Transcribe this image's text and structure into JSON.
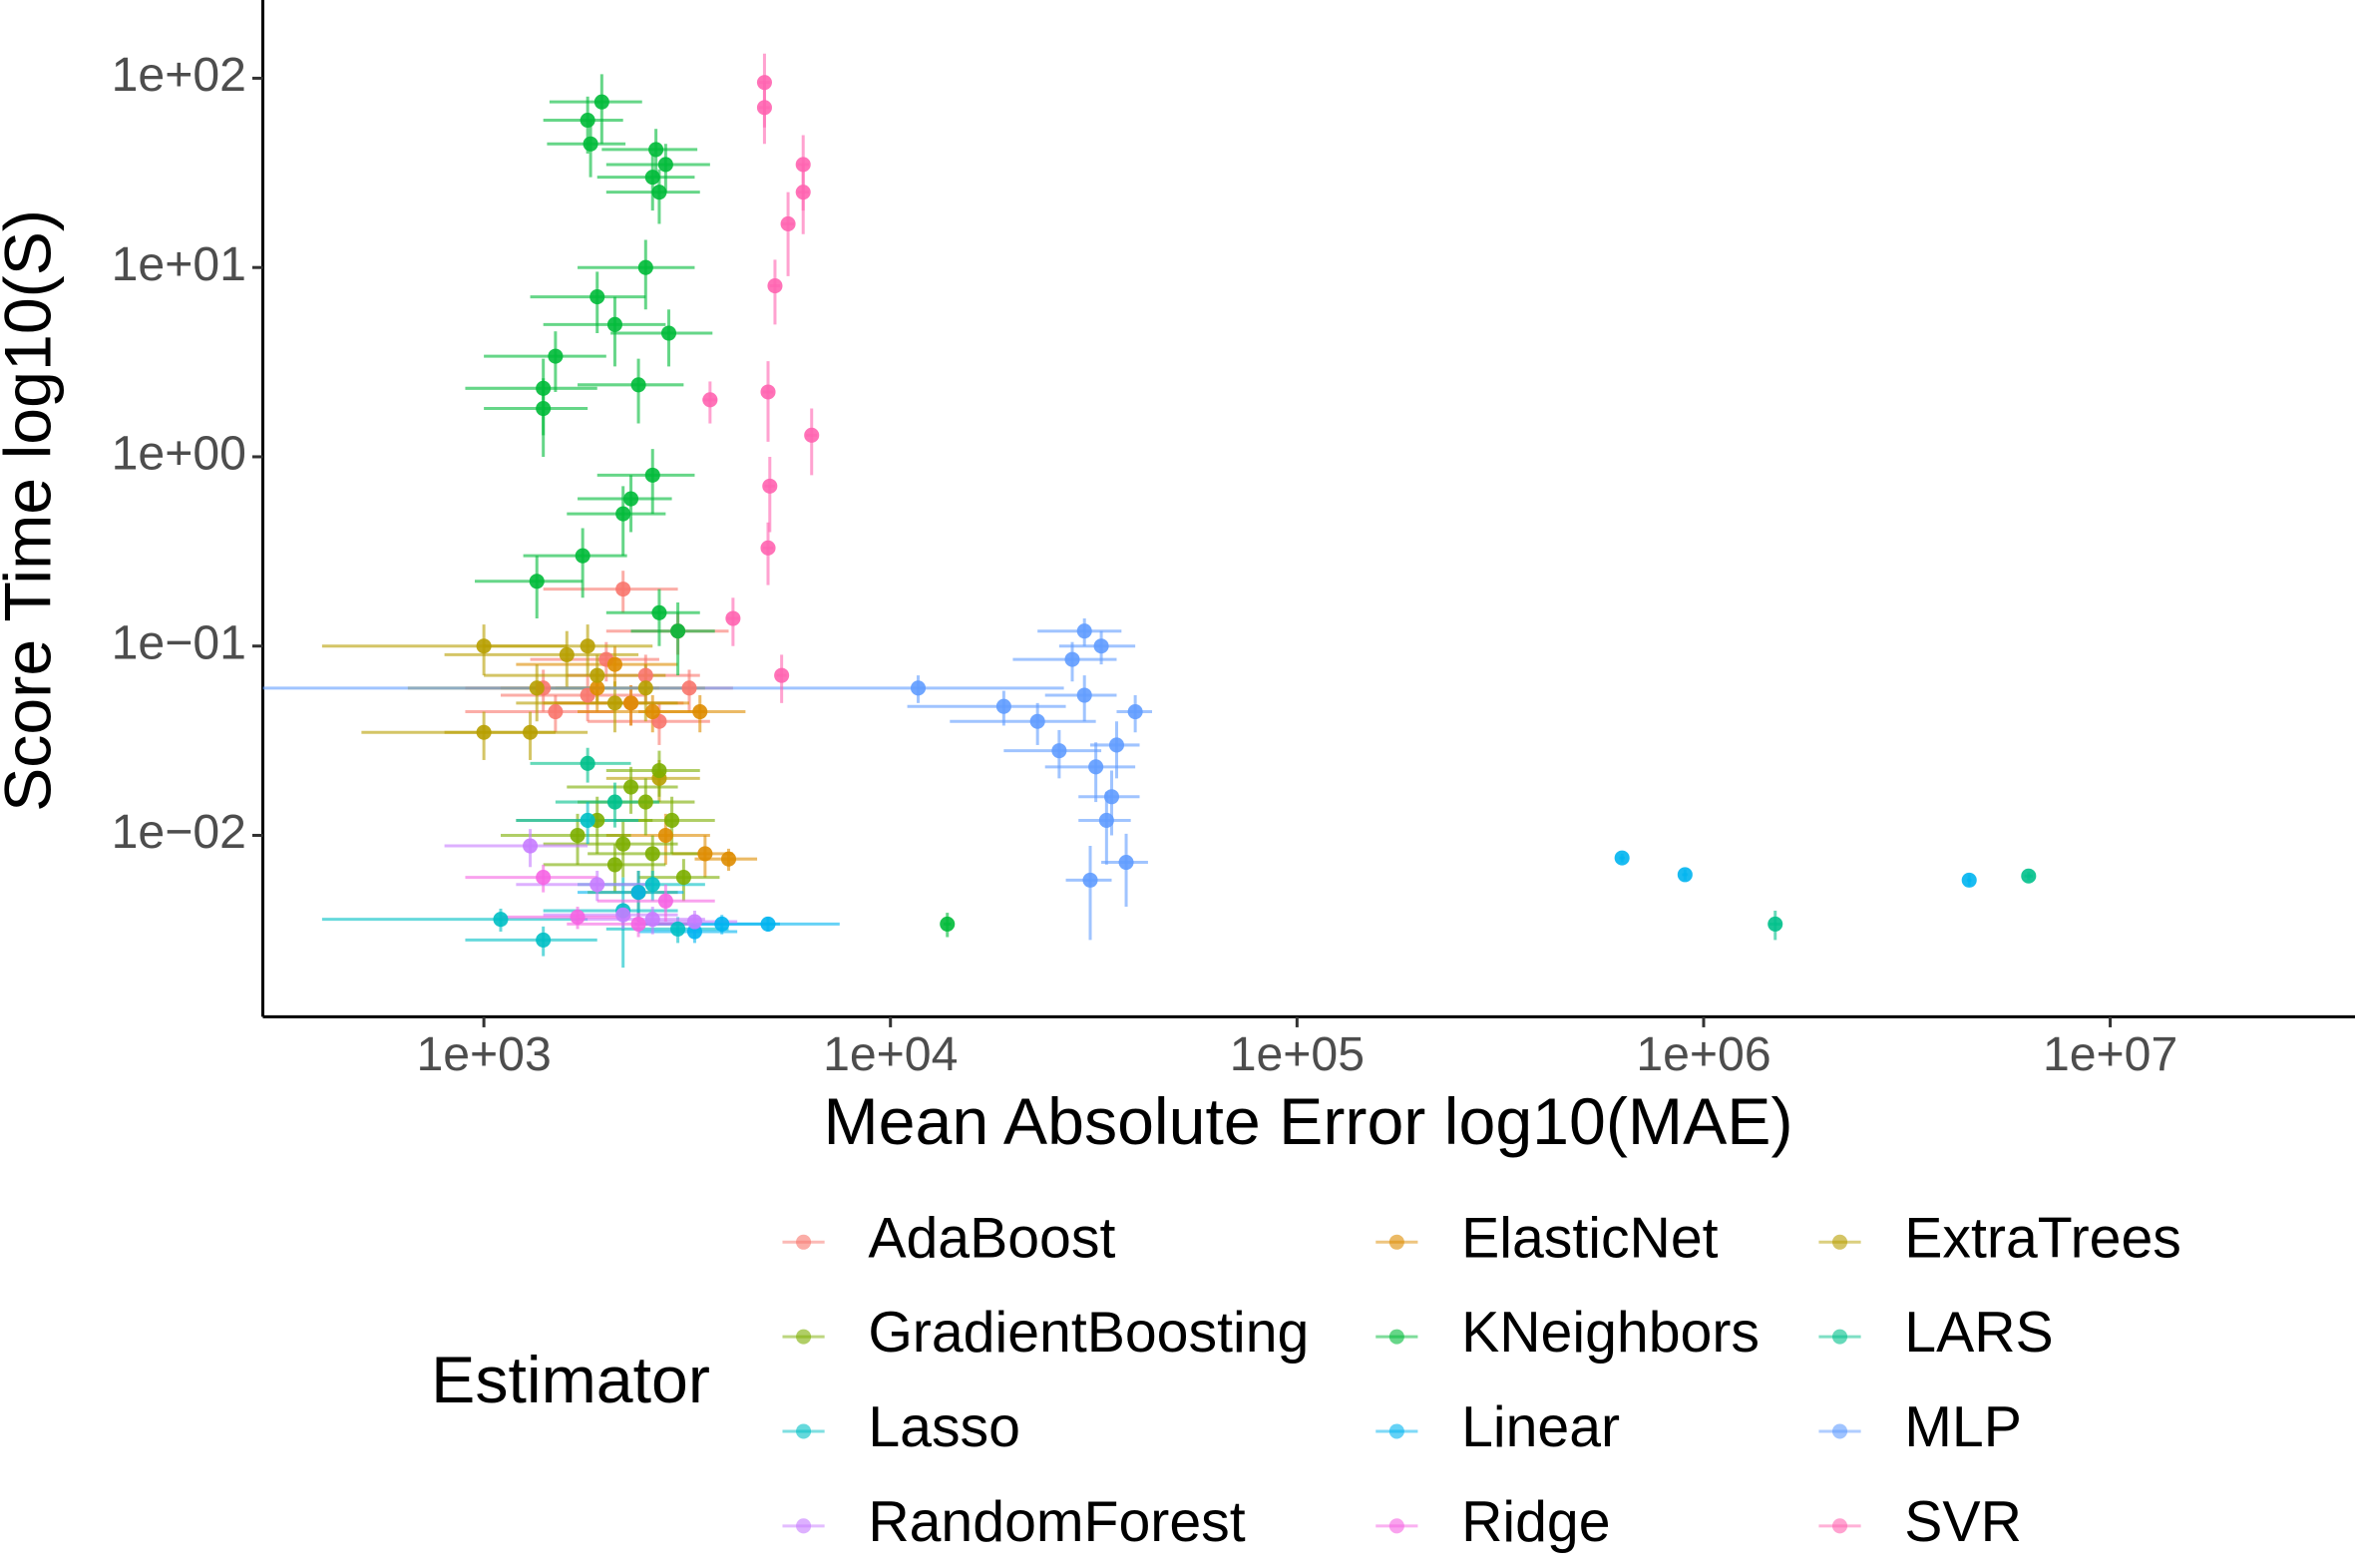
{
  "chart_data": {
    "type": "scatter",
    "x_label": "Mean Absolute Error log10(MAE)",
    "y_label": "Score Time log10(S)",
    "legend_title": "Estimator",
    "legend": "bottom",
    "x_log": true,
    "y_log": true,
    "grid": false,
    "xlim": [
      286,
      40000000
    ],
    "ylim": [
      0.0011,
      259
    ],
    "xticks": [
      {
        "value": 1000,
        "label": "1e+03"
      },
      {
        "value": 10000,
        "label": "1e+04"
      },
      {
        "value": 100000,
        "label": "1e+05"
      },
      {
        "value": 1000000,
        "label": "1e+06"
      },
      {
        "value": 10000000,
        "label": "1e+07"
      }
    ],
    "yticks": [
      {
        "value": 0.01,
        "label": "1e−02"
      },
      {
        "value": 0.1,
        "label": "1e−01"
      },
      {
        "value": 1,
        "label": "1e+00"
      },
      {
        "value": 10,
        "label": "1e+01"
      },
      {
        "value": 100,
        "label": "1e+02"
      }
    ],
    "series": [
      {
        "name": "AdaBoost",
        "color": "#F8766D",
        "x": [
          1400,
          1800,
          2200,
          2500,
          3000,
          2300,
          1500,
          2000,
          3200,
          2700
        ],
        "values": [
          0.06,
          0.055,
          0.2,
          0.07,
          0.12,
          0.05,
          0.045,
          0.085,
          0.06,
          0.04
        ],
        "xerr": [
          500,
          700,
          800,
          900,
          1000,
          800,
          600,
          700,
          900,
          900
        ],
        "yerr": [
          0.015,
          0.015,
          0.05,
          0.02,
          0.03,
          0.012,
          0.01,
          0.02,
          0.015,
          0.01
        ]
      },
      {
        "name": "ElasticNet",
        "color": "#DE8C00",
        "x": [
          1900,
          2300,
          2600,
          3400,
          3500,
          2800,
          4000,
          2100
        ],
        "values": [
          0.06,
          0.05,
          0.045,
          0.045,
          0.008,
          0.01,
          0.0075,
          0.08
        ],
        "xerr": [
          800,
          900,
          900,
          1000,
          600,
          800,
          700,
          900
        ],
        "yerr": [
          0.015,
          0.012,
          0.01,
          0.01,
          0.002,
          0.003,
          0.001,
          0.02
        ]
      },
      {
        "name": "ExtraTrees",
        "color": "#B79F00",
        "x": [
          1000,
          1350,
          1600,
          1900,
          2100,
          2500,
          1300,
          1800,
          2700,
          1000
        ],
        "values": [
          0.1,
          0.06,
          0.09,
          0.07,
          0.05,
          0.06,
          0.035,
          0.1,
          0.02,
          0.035
        ],
        "xerr": [
          600,
          700,
          800,
          900,
          900,
          1000,
          500,
          800,
          700,
          500
        ],
        "yerr": [
          0.03,
          0.02,
          0.03,
          0.02,
          0.015,
          0.02,
          0.01,
          0.03,
          0.005,
          0.01
        ]
      },
      {
        "name": "GradientBoosting",
        "color": "#7CAE00",
        "x": [
          1900,
          2200,
          2500,
          2700,
          2900,
          2100,
          2400,
          1700,
          2600,
          3100,
          2300
        ],
        "values": [
          0.012,
          0.009,
          0.015,
          0.022,
          0.012,
          0.007,
          0.005,
          0.01,
          0.008,
          0.006,
          0.018
        ],
        "xerr": [
          700,
          800,
          800,
          700,
          800,
          700,
          600,
          600,
          800,
          700,
          700
        ],
        "yerr": [
          0.004,
          0.003,
          0.005,
          0.006,
          0.004,
          0.002,
          0.0015,
          0.003,
          0.002,
          0.0015,
          0.005
        ]
      },
      {
        "name": "KNeighbors",
        "color": "#00BA38",
        "x": [
          1800,
          1830,
          1950,
          2700,
          2800,
          2650,
          2600,
          1400,
          1500,
          1900,
          2100,
          2500,
          2850,
          1400,
          2400,
          2600,
          2200,
          2300,
          1750,
          2700,
          3000,
          1350,
          13800
        ],
        "values": [
          60,
          45,
          75,
          25,
          35,
          42,
          30,
          2.3,
          3.4,
          7,
          5,
          10,
          4.5,
          1.8,
          2.4,
          0.8,
          0.5,
          0.6,
          0.3,
          0.15,
          0.12,
          0.22,
          0.0034
        ],
        "xerr": [
          400,
          400,
          500,
          700,
          800,
          700,
          700,
          500,
          500,
          600,
          700,
          800,
          800,
          400,
          700,
          700,
          600,
          600,
          500,
          700,
          700,
          400,
          300
        ],
        "yerr": [
          20,
          15,
          30,
          8,
          10,
          12,
          10,
          1,
          1.2,
          2.5,
          2,
          4,
          1.5,
          0.8,
          0.9,
          0.3,
          0.2,
          0.2,
          0.12,
          0.05,
          0.05,
          0.08,
          0.0005
        ]
      },
      {
        "name": "LARS",
        "color": "#00C08B",
        "x": [
          1500000,
          6300000,
          1800,
          2100
        ],
        "values": [
          0.0034,
          0.0061,
          0.024,
          0.015
        ],
        "xerr": [
          50000,
          150000,
          500,
          600
        ],
        "yerr": [
          0.0006,
          0.0003,
          0.005,
          0.004
        ]
      },
      {
        "name": "Lasso",
        "color": "#00BFC4",
        "x": [
          1400,
          2200,
          2600,
          1100,
          3000,
          1800
        ],
        "values": [
          0.0028,
          0.004,
          0.0055,
          0.0036,
          0.0032,
          0.012
        ],
        "xerr": [
          500,
          800,
          900,
          700,
          1000,
          600
        ],
        "yerr": [
          0.0005,
          0.002,
          0.001,
          0.0005,
          0.0005,
          0.003
        ]
      },
      {
        "name": "Linear",
        "color": "#00B4F0",
        "x": [
          630000,
          900000,
          4500000,
          3850,
          5000,
          3300,
          2400
        ],
        "values": [
          0.0076,
          0.0062,
          0.0058,
          0.0034,
          0.0034,
          0.0031,
          0.005
        ],
        "xerr": [
          10000,
          15000,
          60000,
          1500,
          2500,
          900,
          700
        ],
        "yerr": [
          0.0004,
          0.0004,
          0.0004,
          0.0004,
          0.0003,
          0.0004,
          0.0015
        ]
      },
      {
        "name": "MLP",
        "color": "#619CFF",
        "x": [
          11700,
          19000,
          23000,
          28000,
          30000,
          32000,
          35000,
          38000,
          26000,
          30000,
          33000,
          36000,
          40000,
          31000,
          34000
        ],
        "values": [
          0.06,
          0.048,
          0.04,
          0.085,
          0.12,
          0.023,
          0.016,
          0.0072,
          0.028,
          0.055,
          0.1,
          0.03,
          0.045,
          0.0058,
          0.012
        ],
        "xerr": [
          15000,
          8000,
          9000,
          8000,
          7000,
          8000,
          6000,
          5000,
          7000,
          6000,
          7000,
          5000,
          4000,
          4000,
          5000
        ],
        "yerr": [
          0.01,
          0.01,
          0.01,
          0.02,
          0.02,
          0.008,
          0.006,
          0.003,
          0.008,
          0.015,
          0.02,
          0.01,
          0.01,
          0.003,
          0.005
        ]
      },
      {
        "name": "RandomForest",
        "color": "#C77CFF",
        "x": [
          1300,
          2200,
          2600,
          1900,
          3300
        ],
        "values": [
          0.0088,
          0.0038,
          0.0036,
          0.0055,
          0.0035
        ],
        "xerr": [
          500,
          800,
          900,
          700,
          900
        ],
        "yerr": [
          0.002,
          0.0006,
          0.0006,
          0.001,
          0.0005
        ]
      },
      {
        "name": "Ridge",
        "color": "#F564E3",
        "x": [
          1700,
          2400,
          1400,
          2800
        ],
        "values": [
          0.0037,
          0.0034,
          0.006,
          0.0045
        ],
        "xerr": [
          600,
          800,
          500,
          900
        ],
        "yerr": [
          0.0005,
          0.0005,
          0.001,
          0.001
        ]
      },
      {
        "name": "SVR",
        "color": "#FF64B0",
        "x": [
          4900,
          4900,
          6100,
          6100,
          5600,
          5200,
          5000,
          6400,
          3600,
          5050,
          4100,
          5400,
          5000
        ],
        "values": [
          95,
          70,
          35,
          25,
          17,
          8,
          2.2,
          1.3,
          2,
          0.7,
          0.14,
          0.07,
          0.33
        ],
        "xerr": [
          150,
          150,
          200,
          200,
          200,
          150,
          150,
          200,
          150,
          150,
          150,
          150,
          150
        ],
        "yerr": [
          40,
          25,
          15,
          10,
          8,
          3,
          1,
          0.5,
          0.5,
          0.3,
          0.04,
          0.02,
          0.12
        ]
      }
    ]
  }
}
